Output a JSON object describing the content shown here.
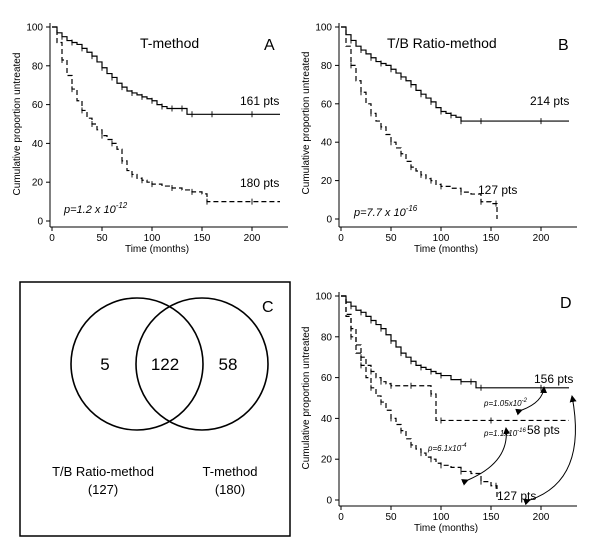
{
  "chart_data": [
    {
      "panel": "A",
      "type": "line",
      "title": "T-method",
      "xlabel": "Time (months)",
      "ylabel": "Cumulative proportion untreated",
      "xlim": [
        0,
        230
      ],
      "ylim": [
        0,
        100
      ],
      "xticks": [
        0,
        50,
        100,
        150,
        200
      ],
      "yticks": [
        0,
        20,
        40,
        60,
        80,
        100
      ],
      "pvalue": {
        "base": "p=1.2 x 10",
        "exp": "-12"
      },
      "series": [
        {
          "name": "161 pts",
          "style": "solid",
          "x": [
            0,
            5,
            10,
            15,
            20,
            25,
            30,
            35,
            40,
            45,
            50,
            55,
            60,
            65,
            70,
            75,
            80,
            85,
            90,
            95,
            100,
            105,
            110,
            115,
            120,
            125,
            130,
            135,
            140,
            150,
            160,
            180,
            200,
            228
          ],
          "y": [
            100,
            97,
            95,
            93,
            92,
            91,
            89,
            87,
            85,
            82,
            79,
            76,
            74,
            71,
            69,
            67,
            66,
            65,
            64,
            63,
            62,
            60,
            59,
            58,
            58,
            58,
            58,
            55,
            55,
            55,
            55,
            55,
            55,
            55
          ]
        },
        {
          "name": "180 pts",
          "style": "dashed",
          "x": [
            0,
            5,
            10,
            15,
            20,
            25,
            30,
            35,
            40,
            45,
            50,
            55,
            60,
            65,
            70,
            75,
            80,
            85,
            90,
            95,
            100,
            110,
            120,
            130,
            140,
            150,
            155,
            160,
            200,
            228
          ],
          "y": [
            100,
            92,
            83,
            75,
            68,
            62,
            57,
            53,
            50,
            47,
            44,
            42,
            40,
            37,
            31,
            26,
            24,
            22,
            21,
            20,
            19,
            18,
            17,
            16,
            15,
            14,
            10,
            10,
            10,
            10
          ]
        }
      ]
    },
    {
      "panel": "B",
      "type": "line",
      "title": "T/B Ratio-method",
      "xlabel": "Time (months)",
      "ylabel": "Cumulative proportion untreated",
      "xlim": [
        0,
        230
      ],
      "ylim": [
        0,
        100
      ],
      "xticks": [
        0,
        50,
        100,
        150,
        200
      ],
      "yticks": [
        0,
        20,
        40,
        60,
        80,
        100
      ],
      "pvalue": {
        "base": "p=7.7 x 10",
        "exp": "-16"
      },
      "series": [
        {
          "name": "214 pts",
          "style": "solid",
          "x": [
            0,
            5,
            10,
            15,
            20,
            25,
            30,
            35,
            40,
            45,
            50,
            55,
            60,
            65,
            70,
            75,
            80,
            85,
            90,
            95,
            100,
            105,
            110,
            115,
            120,
            130,
            140,
            160,
            200,
            228
          ],
          "y": [
            100,
            96,
            93,
            90,
            88,
            86,
            84,
            82,
            81,
            80,
            78,
            76,
            74,
            72,
            70,
            67,
            65,
            63,
            61,
            58,
            56,
            55,
            54,
            53,
            51,
            51,
            51,
            51,
            51,
            51
          ]
        },
        {
          "name": "127 pts",
          "style": "dashed",
          "x": [
            0,
            5,
            10,
            15,
            20,
            25,
            30,
            35,
            40,
            45,
            50,
            55,
            60,
            65,
            70,
            75,
            80,
            85,
            90,
            95,
            100,
            110,
            120,
            130,
            140,
            150,
            155,
            156
          ],
          "y": [
            100,
            90,
            80,
            72,
            66,
            60,
            55,
            51,
            48,
            44,
            40,
            37,
            34,
            30,
            27,
            25,
            23,
            21,
            20,
            18,
            17,
            16,
            14,
            13,
            9,
            8,
            8,
            0
          ]
        }
      ]
    },
    {
      "panel": "C",
      "type": "venn",
      "sets": [
        {
          "name": "T/B Ratio-method",
          "total": "(127)",
          "only": "5"
        },
        {
          "name": "T-method",
          "total": "(180)",
          "only": "58"
        }
      ],
      "intersection": "122"
    },
    {
      "panel": "D",
      "type": "line",
      "xlabel": "Time (months)",
      "ylabel": "Cumulative proportion untreated",
      "xlim": [
        0,
        230
      ],
      "ylim": [
        0,
        100
      ],
      "xticks": [
        0,
        50,
        100,
        150,
        200
      ],
      "yticks": [
        0,
        20,
        40,
        60,
        80,
        100
      ],
      "series": [
        {
          "name": "156 pts",
          "style": "solid",
          "x": [
            0,
            5,
            10,
            15,
            20,
            25,
            30,
            35,
            40,
            45,
            50,
            55,
            60,
            65,
            70,
            75,
            80,
            85,
            90,
            95,
            100,
            110,
            120,
            125,
            130,
            135,
            140,
            160,
            200,
            228
          ],
          "y": [
            100,
            97,
            95,
            93,
            92,
            90,
            88,
            86,
            84,
            81,
            78,
            75,
            72,
            70,
            68,
            66,
            65,
            64,
            63,
            62,
            61,
            59,
            58,
            58,
            58,
            55,
            55,
            55,
            55,
            55
          ]
        },
        {
          "name": "58 pts",
          "style": "dashed",
          "x": [
            0,
            5,
            10,
            15,
            20,
            25,
            30,
            35,
            40,
            45,
            50,
            60,
            70,
            80,
            90,
            95,
            100,
            120,
            150,
            200,
            228
          ],
          "y": [
            100,
            91,
            84,
            76,
            70,
            66,
            63,
            60,
            58,
            57,
            56,
            56,
            56,
            56,
            52,
            39,
            39,
            39,
            39,
            39,
            39
          ]
        },
        {
          "name": "127 pts",
          "style": "dashed",
          "x": [
            0,
            5,
            10,
            15,
            20,
            25,
            30,
            35,
            40,
            45,
            50,
            55,
            60,
            65,
            70,
            75,
            80,
            85,
            90,
            95,
            100,
            110,
            120,
            130,
            140,
            150,
            155,
            156
          ],
          "y": [
            100,
            90,
            80,
            72,
            66,
            60,
            55,
            51,
            48,
            44,
            40,
            37,
            34,
            30,
            27,
            25,
            23,
            21,
            20,
            18,
            17,
            16,
            14,
            13,
            9,
            7,
            7,
            0
          ]
        }
      ],
      "comparisons": [
        {
          "label": "p=1.05x10",
          "exp": "-2"
        },
        {
          "label": "p=6.1x10",
          "exp": "-4"
        },
        {
          "label": "p=1.1x10",
          "exp": "-16"
        }
      ]
    }
  ]
}
